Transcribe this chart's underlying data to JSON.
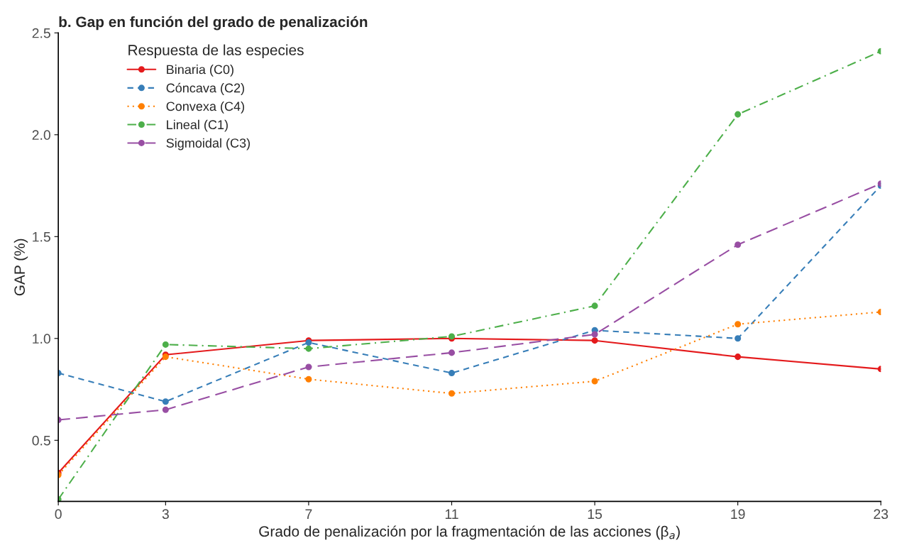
{
  "chart_data": {
    "type": "line",
    "title": "b. Gap en función del grado de penalización",
    "xlabel": "Grado de penalización por la fragmentación de las acciones (β$_{a}$)",
    "ylabel": "GAP (%)",
    "legend_title": "Respuesta de las especies",
    "x": [
      0,
      3,
      7,
      11,
      15,
      19,
      23
    ],
    "series": [
      {
        "name": "Binaria (C0)",
        "color": "#e41a1c",
        "line_style": "solid",
        "values": [
          0.34,
          0.92,
          0.99,
          1.0,
          0.99,
          0.91,
          0.85
        ]
      },
      {
        "name": "Cóncava (C2)",
        "color": "#377eb8",
        "line_style": "dashed",
        "values": [
          0.83,
          0.69,
          0.98,
          0.83,
          1.04,
          1.0,
          1.75
        ]
      },
      {
        "name": "Convexa (C4)",
        "color": "#ff7f00",
        "line_style": "dotted",
        "values": [
          0.33,
          0.91,
          0.8,
          0.73,
          0.79,
          1.07,
          1.13
        ]
      },
      {
        "name": "Lineal (C1)",
        "color": "#4daf4a",
        "line_style": "dashdot",
        "values": [
          0.21,
          0.97,
          0.95,
          1.01,
          1.16,
          2.1,
          2.41
        ]
      },
      {
        "name": "Sigmoidal (C3)",
        "color": "#984ea3",
        "line_style": "longdash",
        "values": [
          0.6,
          0.65,
          0.86,
          0.93,
          1.02,
          1.46,
          1.76
        ]
      }
    ],
    "xlim": [
      0,
      23
    ],
    "xticks": [
      0,
      3,
      7,
      11,
      15,
      19,
      23
    ],
    "ylim": [
      0.2,
      2.5
    ],
    "yticks": [
      0.5,
      {
        "value": 1,
        "label": "1.0"
      },
      1.5,
      {
        "value": 2,
        "label": "2.0"
      },
      2.5
    ],
    "grid": false,
    "legend": "top left",
    "marker": "circle"
  }
}
